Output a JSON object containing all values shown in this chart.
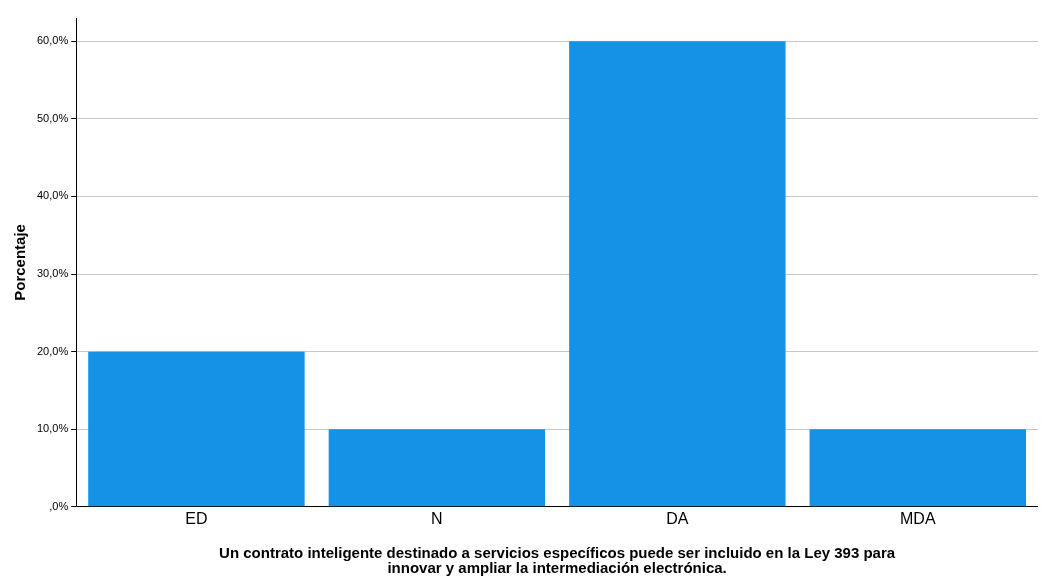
{
  "chart_data": {
    "type": "bar",
    "xlabel": "Un contrato inteligente destinado a servicios específicos puede ser incluido en la Ley 393 para\ninnovar y ampliar la intermediación electrónica.",
    "ylabel": "Porcentaje",
    "categories": [
      "ED",
      "N",
      "DA",
      "MDA"
    ],
    "values": [
      20,
      10,
      60,
      10
    ],
    "color": "#1591e6",
    "ylim": [
      0,
      63
    ],
    "yticks": [
      {
        "value": 0,
        "label": ",0%"
      },
      {
        "value": 10,
        "label": "10,0%"
      },
      {
        "value": 20,
        "label": "20,0%"
      },
      {
        "value": 30,
        "label": "30,0%"
      },
      {
        "value": 40,
        "label": "40,0%"
      },
      {
        "value": 50,
        "label": "50,0%"
      },
      {
        "value": 60,
        "label": "60,0%"
      }
    ],
    "grid": "y",
    "legend": false
  }
}
